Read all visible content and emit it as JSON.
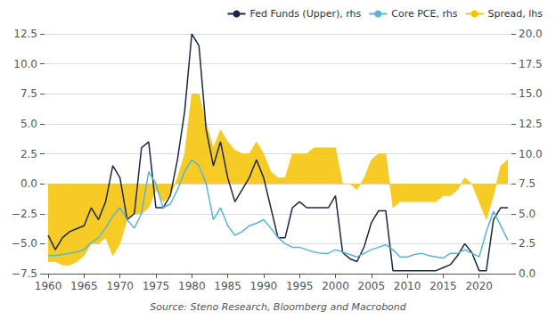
{
  "chart_data": {
    "type": "line",
    "annotations": [
      "Source: Steno Research, Bloomberg and Macrobond"
    ],
    "x": [
      1960,
      1961,
      1962,
      1963,
      1964,
      1965,
      1966,
      1967,
      1968,
      1969,
      1970,
      1971,
      1972,
      1973,
      1974,
      1975,
      1976,
      1977,
      1978,
      1979,
      1980,
      1981,
      1982,
      1983,
      1984,
      1985,
      1986,
      1987,
      1988,
      1989,
      1990,
      1991,
      1992,
      1993,
      1994,
      1995,
      1996,
      1997,
      1998,
      1999,
      2000,
      2001,
      2002,
      2003,
      2004,
      2005,
      2006,
      2007,
      2008,
      2009,
      2010,
      2011,
      2012,
      2013,
      2014,
      2015,
      2016,
      2017,
      2018,
      2019,
      2020,
      2021,
      2022,
      2023,
      2024
    ],
    "series": [
      {
        "name": "Fed Funds (Upper), rhs",
        "type": "line",
        "axis": "y2",
        "color": "#1a2744",
        "values": [
          3.2,
          2.0,
          3.0,
          3.5,
          3.75,
          4.0,
          5.5,
          4.5,
          6.0,
          9.0,
          8.0,
          4.5,
          5.0,
          10.5,
          11.0,
          5.5,
          5.5,
          6.5,
          9.5,
          13.5,
          20.0,
          19.0,
          12.0,
          9.0,
          11.0,
          8.0,
          6.0,
          7.0,
          8.0,
          9.5,
          8.0,
          5.5,
          3.0,
          3.0,
          5.5,
          6.0,
          5.5,
          5.5,
          5.5,
          5.5,
          6.5,
          1.75,
          1.25,
          1.0,
          2.25,
          4.25,
          5.25,
          5.25,
          0.25,
          0.25,
          0.25,
          0.25,
          0.25,
          0.25,
          0.25,
          0.5,
          0.75,
          1.5,
          2.5,
          1.75,
          0.25,
          0.25,
          4.5,
          5.5,
          5.5
        ]
      },
      {
        "name": "Core PCE, rhs",
        "type": "line",
        "axis": "y2",
        "color": "#5ab4d6",
        "values": [
          1.5,
          1.5,
          1.6,
          1.7,
          1.8,
          2.0,
          2.6,
          3.0,
          3.8,
          4.8,
          5.5,
          4.5,
          3.8,
          5.0,
          8.5,
          7.5,
          5.5,
          5.8,
          7.0,
          8.5,
          9.5,
          9.0,
          7.5,
          4.5,
          5.5,
          4.0,
          3.2,
          3.5,
          4.0,
          4.2,
          4.5,
          3.8,
          3.0,
          2.5,
          2.2,
          2.2,
          2.0,
          1.8,
          1.7,
          1.7,
          2.0,
          1.8,
          1.6,
          1.4,
          1.7,
          2.0,
          2.2,
          2.4,
          2.0,
          1.4,
          1.4,
          1.6,
          1.7,
          1.5,
          1.4,
          1.3,
          1.7,
          1.7,
          2.0,
          1.7,
          1.4,
          3.5,
          5.2,
          4.0,
          2.8
        ]
      },
      {
        "name": "Spread, lhs",
        "type": "area",
        "axis": "y",
        "color": "#f5c200",
        "values": [
          -6.5,
          -6.5,
          -6.8,
          -6.8,
          -6.5,
          -6.0,
          -5.0,
          -5.0,
          -4.5,
          -6.0,
          -5.0,
          -3.0,
          -2.5,
          -2.5,
          -2.0,
          -0.5,
          -1.5,
          -1.0,
          0.5,
          2.5,
          7.5,
          7.5,
          5.0,
          3.0,
          4.5,
          3.5,
          2.8,
          2.5,
          2.5,
          3.5,
          2.5,
          1.0,
          0.5,
          0.5,
          2.5,
          2.5,
          2.5,
          3.0,
          3.0,
          3.0,
          3.0,
          0.0,
          0.0,
          -0.5,
          0.5,
          2.0,
          2.5,
          2.5,
          -2.0,
          -1.5,
          -1.5,
          -1.5,
          -1.5,
          -1.5,
          -1.5,
          -1.0,
          -1.0,
          -0.5,
          0.5,
          0.0,
          -1.5,
          -3.0,
          -1.0,
          1.5,
          2.0
        ]
      }
    ],
    "xlim": [
      1959.5,
      2024.5
    ],
    "xticks": [
      1960,
      1965,
      1970,
      1975,
      1980,
      1985,
      1990,
      1995,
      2000,
      2005,
      2010,
      2015,
      2020
    ],
    "ylim": [
      -7.5,
      12.5
    ],
    "yticks": [
      {
        "value": -7.5,
        "label": "−7.5"
      },
      {
        "value": -5.0,
        "label": "−5.0"
      },
      {
        "value": -2.5,
        "label": "−2.5"
      },
      {
        "value": 0.0,
        "label": "0.0"
      },
      2.5,
      {
        "value": 5.0,
        "label": "5.0"
      },
      7.5,
      {
        "value": 10.0,
        "label": "10.0"
      },
      12.5
    ],
    "y2lim": [
      0.0,
      20.0
    ],
    "y2ticks": [
      {
        "value": 0.0,
        "label": "0.0"
      },
      2.5,
      {
        "value": 5.0,
        "label": "5.0"
      },
      7.5,
      {
        "value": 10.0,
        "label": "10.0"
      },
      12.5,
      {
        "value": 15.0,
        "label": "15.0"
      },
      17.5,
      {
        "value": 20.0,
        "label": "20.0"
      }
    ],
    "grid": true,
    "legend": "upper right"
  }
}
